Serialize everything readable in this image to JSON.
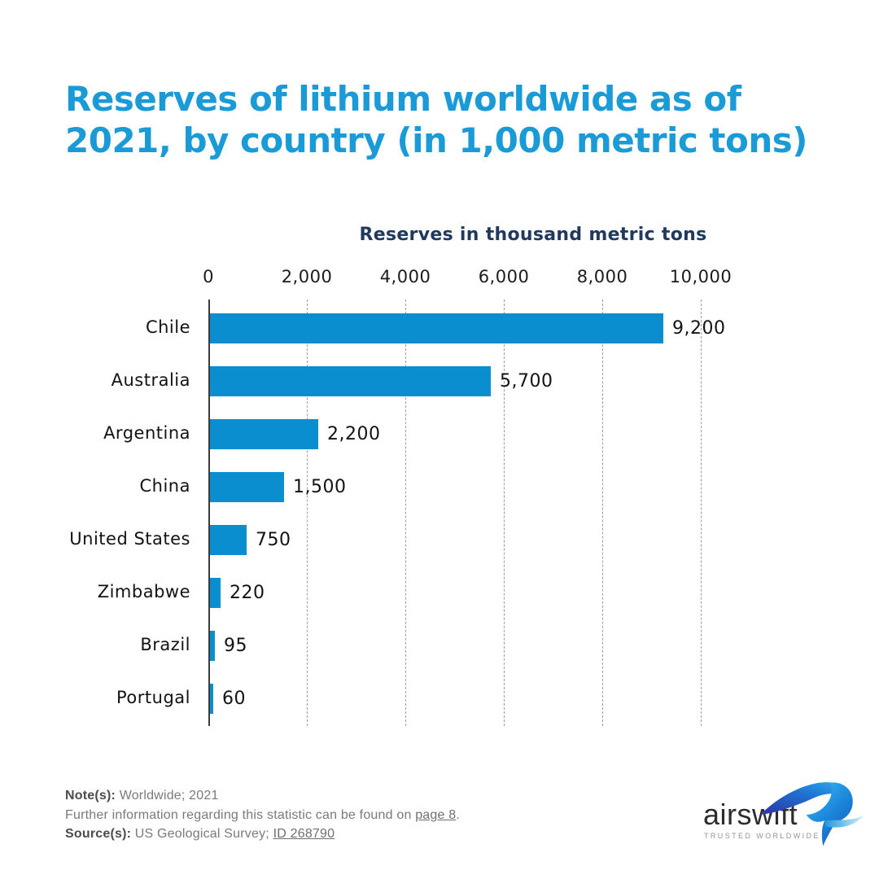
{
  "title": {
    "full": "Reserves of lithium worldwide as of 2021, by country (in 1,000 metric tons)",
    "line1": "Reserves of lithium worldwide as of",
    "line2": "2021, by country (in 1,000 metric tons)",
    "color": "#1a9ad6"
  },
  "chart_data": {
    "type": "bar",
    "orientation": "horizontal",
    "title": "Reserves in thousand metric tons",
    "categories": [
      "Chile",
      "Australia",
      "Argentina",
      "China",
      "United States",
      "Zimbabwe",
      "Brazil",
      "Portugal"
    ],
    "values": [
      9200,
      5700,
      2200,
      1500,
      750,
      220,
      95,
      60
    ],
    "value_labels": [
      "9,200",
      "5,700",
      "2,200",
      "1,500",
      "750",
      "220",
      "95",
      "60"
    ],
    "x_tick_labels": [
      "0",
      "2,000",
      "4,000",
      "6,000",
      "8,000",
      "10,000"
    ],
    "x_tick_values": [
      0,
      2000,
      4000,
      6000,
      8000,
      10000
    ],
    "xlim": [
      0,
      10000
    ],
    "grid": "vertical-dashed",
    "legend": "none",
    "bar_color": "#0b8ed0"
  },
  "notes": {
    "note_label": "Note(s):",
    "note_text": " Worldwide; 2021",
    "further_pre": "Further information regarding this statistic can be found on ",
    "further_link": "page 8",
    "further_post": ".",
    "source_label": "Source(s):",
    "source_text": " US Geological Survey; ",
    "source_link": "ID 268790"
  },
  "logo": {
    "name": "airswift",
    "tagline": "TRUSTED WORLDWIDE"
  },
  "colors": {
    "title_blue": "#1a9ad6",
    "bar_blue": "#0b8ed0",
    "axis_title_navy": "#20395c",
    "grid_gray": "#9e9e9e"
  }
}
